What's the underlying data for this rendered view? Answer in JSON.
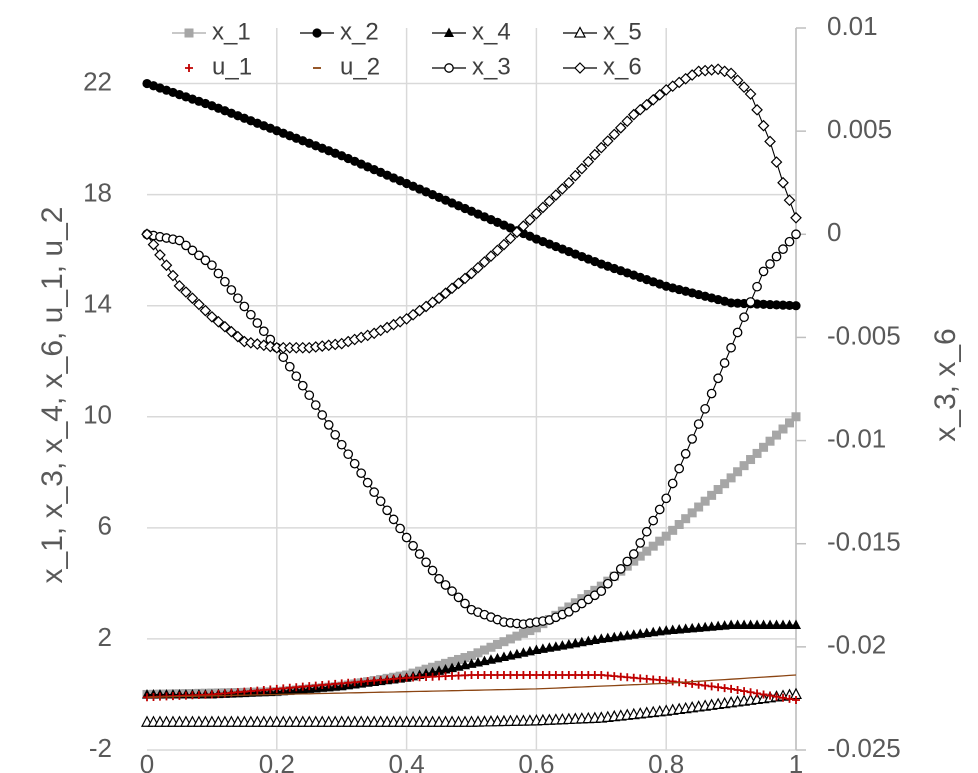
{
  "chart_data": {
    "type": "line",
    "grid": true,
    "legend_position": "top",
    "xlim": [
      0,
      1
    ],
    "x_ticks": [
      "0",
      "0.2",
      "0.4",
      "0.6",
      "0.8",
      "1"
    ],
    "ylim_left": [
      -2,
      24
    ],
    "left_ticks": [
      "-2",
      "2",
      "6",
      "10",
      "14",
      "18",
      "22"
    ],
    "ylim_right": [
      -0.025,
      0.01
    ],
    "right_ticks": [
      "-0.025",
      "-0.02",
      "-0.015",
      "-0.01",
      "-0.005",
      "0",
      "0.005",
      "0.01"
    ],
    "ylabel_left": "x_1,  x_3,  x_4,  x_6,  u_1,  u_2",
    "ylabel_right": "x_3,  x_6",
    "series": [
      {
        "name": "x_1",
        "axis": "left",
        "marker": "square",
        "color": "#a6a6a6",
        "x": [
          0,
          0.2,
          0.3,
          0.4,
          0.5,
          0.6,
          0.7,
          0.8,
          0.9,
          1.0
        ],
        "y": [
          0,
          0.1,
          0.3,
          0.7,
          1.4,
          2.4,
          3.9,
          5.7,
          7.8,
          10.0
        ]
      },
      {
        "name": "x_2",
        "axis": "left",
        "marker": "filled-circle",
        "color": "#000000",
        "x": [
          0,
          0.1,
          0.2,
          0.3,
          0.4,
          0.5,
          0.6,
          0.7,
          0.8,
          0.9,
          1.0
        ],
        "y": [
          22.0,
          21.2,
          20.3,
          19.4,
          18.4,
          17.4,
          16.4,
          15.5,
          14.7,
          14.1,
          14.0
        ]
      },
      {
        "name": "x_4",
        "axis": "left",
        "marker": "filled-triangle",
        "color": "#000000",
        "x": [
          0,
          0.1,
          0.2,
          0.3,
          0.4,
          0.5,
          0.6,
          0.7,
          0.8,
          0.9,
          1.0
        ],
        "y": [
          0,
          0,
          0.1,
          0.3,
          0.6,
          1.1,
          1.6,
          2.0,
          2.3,
          2.5,
          2.5
        ]
      },
      {
        "name": "x_5",
        "axis": "left",
        "marker": "open-triangle",
        "color": "#000000",
        "x": [
          0,
          0.2,
          0.4,
          0.5,
          0.6,
          0.7,
          0.8,
          0.9,
          1.0
        ],
        "y": [
          -1.0,
          -1.0,
          -1.0,
          -1.0,
          -0.95,
          -0.85,
          -0.6,
          -0.3,
          0.0
        ]
      },
      {
        "name": "u_1",
        "axis": "left",
        "marker": "plus",
        "color": "#c00000",
        "x": [
          0,
          0.1,
          0.2,
          0.3,
          0.4,
          0.5,
          0.6,
          0.7,
          0.8,
          0.9,
          1.0
        ],
        "y": [
          -0.1,
          0.0,
          0.2,
          0.4,
          0.6,
          0.7,
          0.7,
          0.7,
          0.5,
          0.2,
          -0.2
        ]
      },
      {
        "name": "u_2",
        "axis": "left",
        "marker": "dash",
        "color": "#8b4513",
        "x": [
          0,
          0.2,
          0.4,
          0.6,
          0.8,
          1.0
        ],
        "y": [
          -0.1,
          0.0,
          0.1,
          0.2,
          0.4,
          0.7
        ]
      },
      {
        "name": "x_3",
        "axis": "right",
        "marker": "open-circle",
        "color": "#000000",
        "x": [
          0,
          0.05,
          0.1,
          0.15,
          0.2,
          0.25,
          0.3,
          0.35,
          0.4,
          0.45,
          0.5,
          0.55,
          0.58,
          0.62,
          0.65,
          0.7,
          0.75,
          0.8,
          0.85,
          0.9,
          0.95,
          1.0
        ],
        "y": [
          0,
          -0.0003,
          -0.0015,
          -0.0035,
          -0.0055,
          -0.0078,
          -0.0102,
          -0.0125,
          -0.0147,
          -0.0167,
          -0.0182,
          -0.0188,
          -0.0189,
          -0.0187,
          -0.0183,
          -0.0173,
          -0.0155,
          -0.0128,
          -0.0092,
          -0.0055,
          -0.0018,
          0
        ]
      },
      {
        "name": "x_6",
        "axis": "right",
        "marker": "open-diamond",
        "color": "#000000",
        "x": [
          0,
          0.05,
          0.1,
          0.15,
          0.2,
          0.25,
          0.3,
          0.35,
          0.4,
          0.45,
          0.5,
          0.55,
          0.6,
          0.65,
          0.7,
          0.75,
          0.8,
          0.85,
          0.88,
          0.9,
          0.93,
          0.96,
          0.98,
          1.0
        ],
        "y": [
          0,
          -0.0025,
          -0.004,
          -0.0052,
          -0.0055,
          -0.0055,
          -0.0053,
          -0.0048,
          -0.0041,
          -0.0031,
          -0.0019,
          -0.0005,
          0.001,
          0.0025,
          0.0042,
          0.0058,
          0.007,
          0.0079,
          0.008,
          0.0078,
          0.0068,
          0.0045,
          0.0025,
          0.0008
        ]
      }
    ]
  }
}
